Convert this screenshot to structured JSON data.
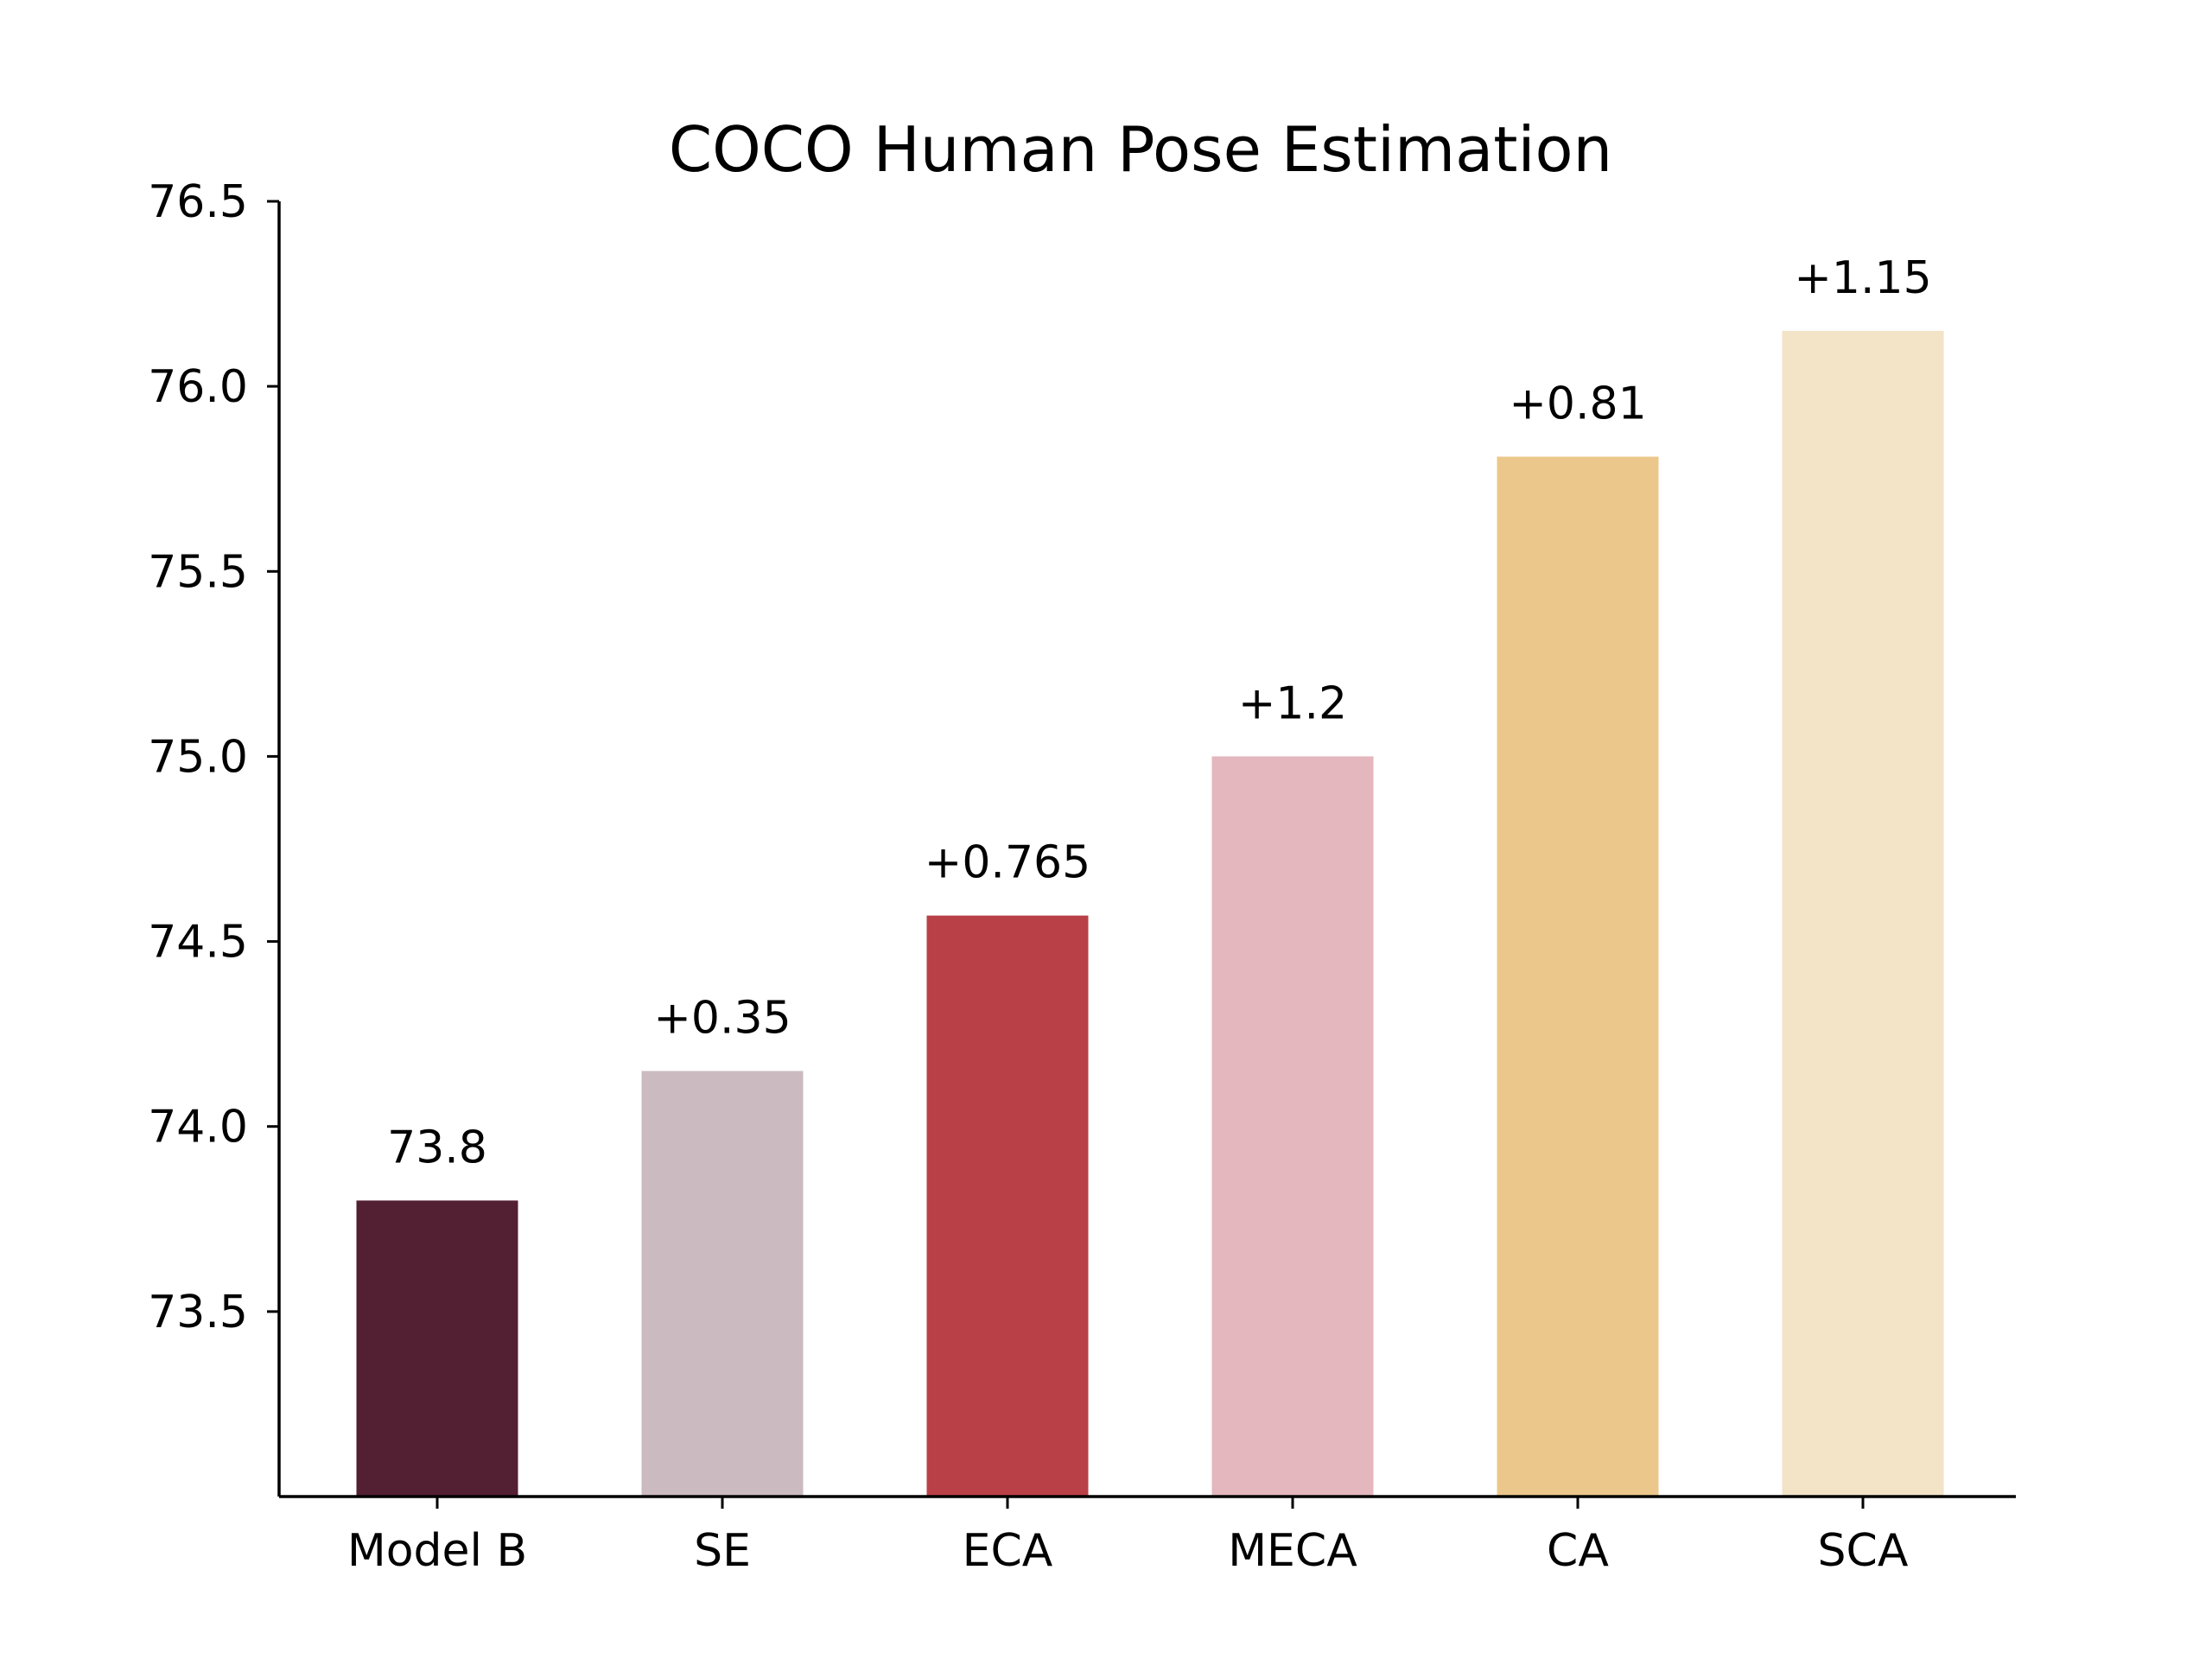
{
  "chart_data": {
    "type": "bar",
    "title": "COCO Human Pose Estimation",
    "xlabel": "",
    "ylabel": "",
    "categories": [
      "Model B",
      "SE",
      "ECA",
      "MECA",
      "CA",
      "SCA"
    ],
    "values": [
      73.8,
      74.15,
      74.57,
      75.0,
      75.81,
      76.15
    ],
    "data_labels": [
      "73.8",
      "+0.35",
      "+0.765",
      "+1.2",
      "+0.81",
      "+1.15"
    ],
    "colors": [
      "#531F32",
      "#CBBBC0",
      "#BA4048",
      "#E3B7BD",
      "#ECC78C",
      "#F3E3C7"
    ],
    "ylim": [
      73.0,
      76.5
    ],
    "yticks": [
      73.5,
      74.0,
      74.5,
      75.0,
      75.5,
      76.0,
      76.5
    ],
    "ytick_labels": [
      "73.5",
      "74.0",
      "74.5",
      "75.0",
      "75.5",
      "76.0",
      "76.5"
    ],
    "grid": false,
    "legend": "none"
  }
}
